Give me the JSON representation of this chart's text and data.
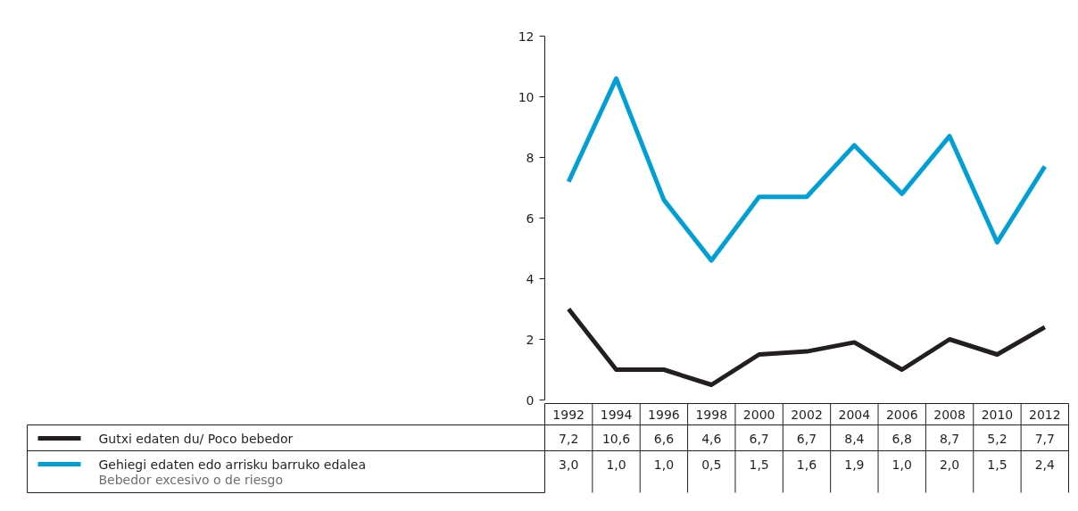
{
  "chart_data": {
    "type": "line",
    "categories": [
      "1992",
      "1994",
      "1996",
      "1998",
      "2000",
      "2002",
      "2004",
      "2006",
      "2008",
      "2010",
      "2012"
    ],
    "series": [
      {
        "name": "Gutxi edaten du/ Poco bebedor",
        "color": "#231f20",
        "values": [
          3.0,
          1.0,
          1.0,
          0.5,
          1.5,
          1.6,
          1.9,
          1.0,
          2.0,
          1.5,
          2.4
        ]
      },
      {
        "name": "Gehiegi edaten edo arrisku barruko edalea\nBebedor excesivo o de riesgo",
        "color": "#00a0d6",
        "values": [
          7.2,
          10.6,
          6.6,
          4.6,
          6.7,
          6.7,
          8.4,
          6.8,
          8.7,
          5.2,
          7.7
        ]
      }
    ],
    "annotations": [
      "7,2",
      "10,6",
      "6,6",
      "4,6",
      "6,7",
      "6,7",
      "8,4",
      "6,8",
      "8,7",
      "5,2",
      "7,7",
      "3,0",
      "1,0",
      "1,0",
      "0,5",
      "1,5",
      "1,6",
      "1,9",
      "1,0",
      "2,0",
      "1,5",
      "2,4"
    ],
    "ylim": [
      0,
      12
    ],
    "yticks": [
      0,
      2,
      4,
      6,
      8,
      10,
      12
    ],
    "grid": false,
    "legend": "bottom",
    "marker": "none",
    "line_style": "solid"
  }
}
